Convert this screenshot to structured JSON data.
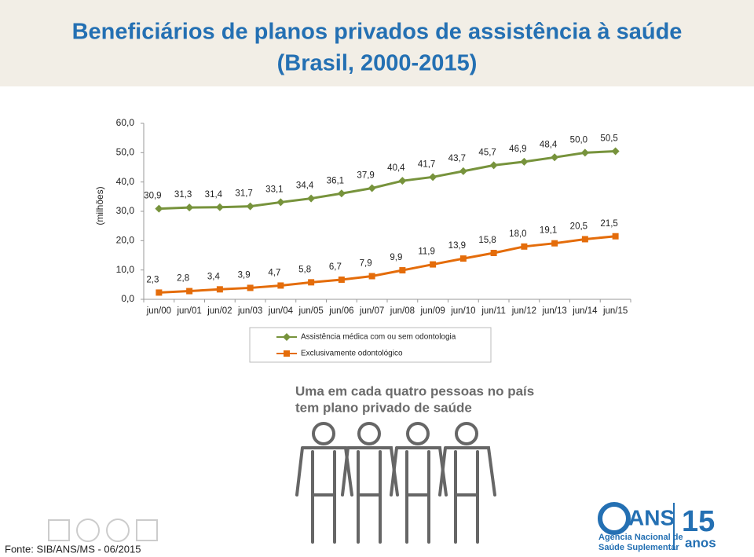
{
  "chart_data": {
    "type": "line",
    "title": "Beneficiários de planos privados de assistência à saúde",
    "subtitle": "(Brasil, 2000-2015)",
    "y_label": "(milhões)",
    "categories": [
      "jun/00",
      "jun/01",
      "jun/02",
      "jun/03",
      "jun/04",
      "jun/05",
      "jun/06",
      "jun/07",
      "jun/08",
      "jun/09",
      "jun/10",
      "jun/11",
      "jun/12",
      "jun/13",
      "jun/14",
      "jun/15"
    ],
    "series": [
      {
        "name": "Assistência médica com ou sem odontologia",
        "color": "#77933c",
        "marker": "diamond",
        "values": [
          30.9,
          31.3,
          31.4,
          31.7,
          33.1,
          34.4,
          36.1,
          37.9,
          40.4,
          41.7,
          43.7,
          45.7,
          46.9,
          48.4,
          50.0,
          50.5
        ],
        "value_labels": [
          "30,9",
          "31,3",
          "31,4",
          "31,7",
          "33,1",
          "34,4",
          "36,1",
          "37,9",
          "40,4",
          "41,7",
          "43,7",
          "45,7",
          "46,9",
          "48,4",
          "50,0",
          "50,5"
        ]
      },
      {
        "name": "Exclusivamente odontológico",
        "color": "#e46c0a",
        "marker": "square",
        "values": [
          2.3,
          2.8,
          3.4,
          3.9,
          4.7,
          5.8,
          6.7,
          7.9,
          9.9,
          11.9,
          13.9,
          15.8,
          18.0,
          19.1,
          20.5,
          21.5
        ],
        "value_labels": [
          "2,3",
          "2,8",
          "3,4",
          "3,9",
          "4,7",
          "5,8",
          "6,7",
          "7,9",
          "9,9",
          "11,9",
          "13,9",
          "15,8",
          "18,0",
          "19,1",
          "20,5",
          "21,5"
        ]
      }
    ],
    "ylim": [
      0,
      60
    ],
    "yticks": [
      {
        "value": 0,
        "label": "0,0"
      },
      {
        "value": 10,
        "label": "10,0"
      },
      {
        "value": 20,
        "label": "20,0"
      },
      {
        "value": 30,
        "label": "30,0"
      },
      {
        "value": 40,
        "label": "40,0"
      },
      {
        "value": 50,
        "label": "50,0"
      },
      {
        "value": 60,
        "label": "60,0"
      }
    ],
    "grid": false,
    "legend": "bottom"
  },
  "infographic": {
    "caption_line1": "Uma em cada quatro pessoas no país",
    "caption_line2": "tem plano privado de saúde"
  },
  "logo": {
    "acronym": "ANS",
    "name_line1": "Agência Nacional de",
    "name_line2": "Saúde Suplementar",
    "number": "15",
    "word": "anos"
  },
  "footer": "Fonte: SIB/ANS/MS - 06/2015"
}
